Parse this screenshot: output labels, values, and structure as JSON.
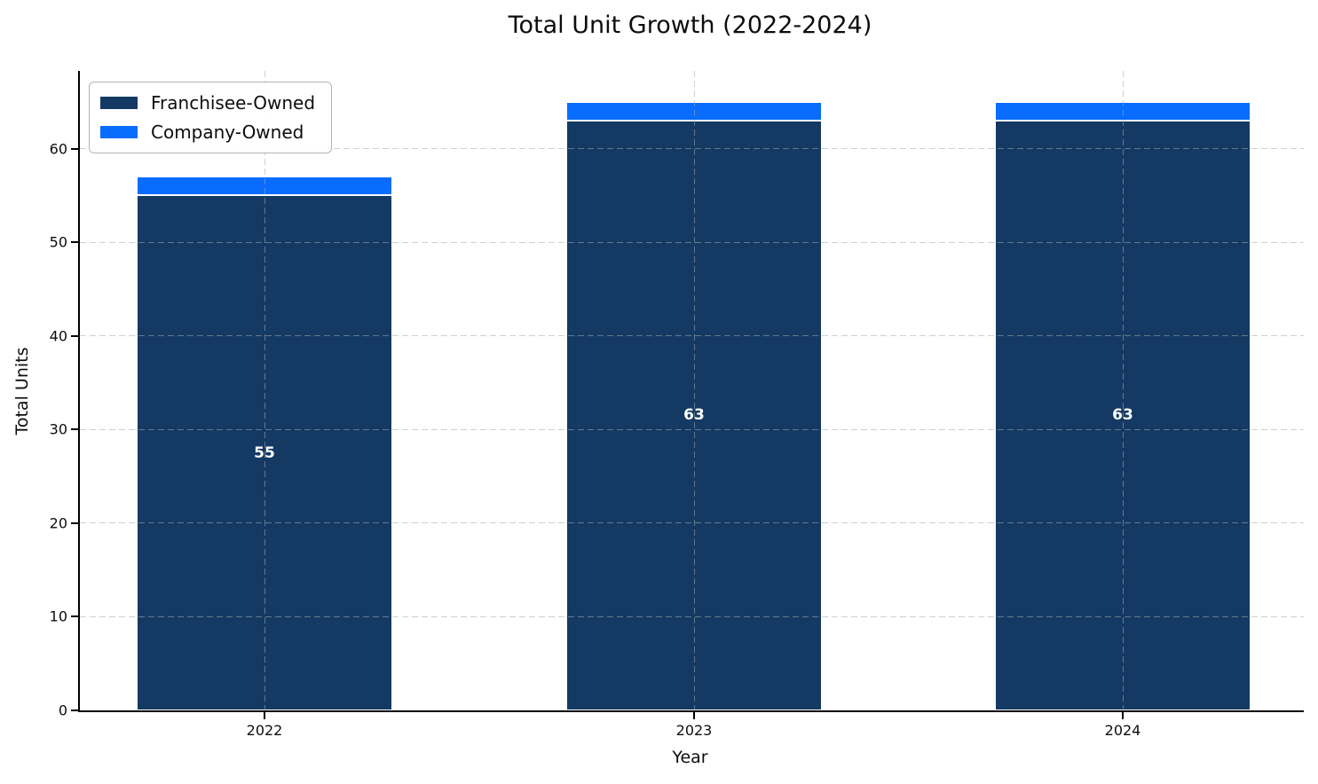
{
  "chart_data": {
    "type": "bar",
    "stacked": true,
    "title": "Total Unit Growth (2022-2024)",
    "xlabel": "Year",
    "ylabel": "Total Units",
    "categories": [
      "2022",
      "2023",
      "2024"
    ],
    "series": [
      {
        "name": "Franchisee-Owned",
        "color": "#143A63",
        "values": [
          55,
          63,
          63
        ],
        "labels": [
          "55",
          "63",
          "63"
        ],
        "label_color": "#ffffff"
      },
      {
        "name": "Company-Owned",
        "color": "#086CFF",
        "values": [
          2,
          2,
          2
        ],
        "labels": [
          "",
          "",
          ""
        ]
      }
    ],
    "yticks": [
      0,
      10,
      20,
      30,
      40,
      50,
      60
    ],
    "ylim": [
      0,
      68.3
    ],
    "grid": "dashed",
    "grid_color": "#c8cacd",
    "legend_position": "upper-left",
    "bar_edge_color": "#ffffff"
  }
}
